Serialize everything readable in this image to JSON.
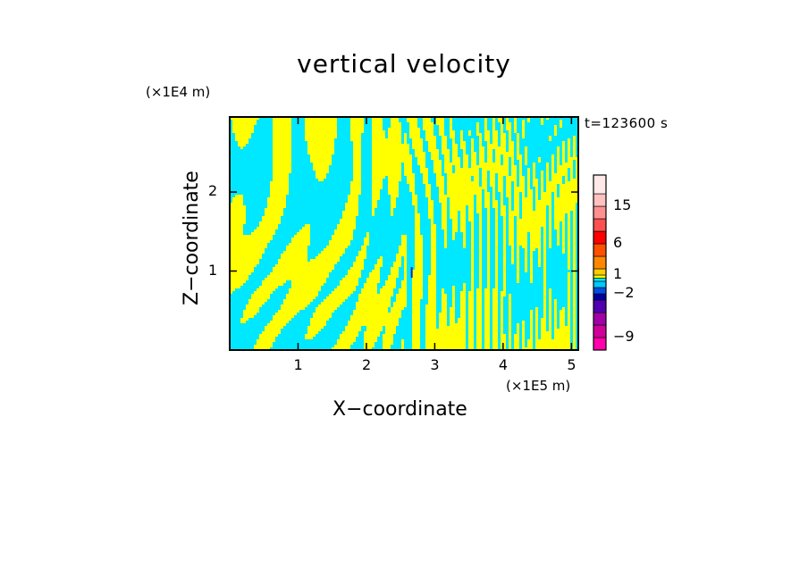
{
  "chart_data": {
    "type": "heatmap",
    "title": "vertical velocity",
    "xlabel": "X−coordinate",
    "ylabel": "Z−coordinate",
    "x_unit": "(×1E5 m)",
    "y_unit": "(×1E4 m)",
    "annotation": "t=123600 s",
    "xlim": [
      0,
      5.1
    ],
    "ylim": [
      0,
      2.95
    ],
    "x_ticks": [
      "1",
      "2",
      "3",
      "4",
      "5"
    ],
    "x_tick_values": [
      1,
      2,
      3,
      4,
      5
    ],
    "y_ticks": [
      "1",
      "2"
    ],
    "y_tick_values": [
      1,
      2
    ],
    "field_colors": {
      "negative": "#00e8ff",
      "positive": "#ffff00",
      "strong": "#2020c0"
    },
    "colorbar": {
      "levels": [
        -11,
        -9,
        -7,
        -5,
        -3,
        -2,
        -1,
        0,
        0.5,
        1,
        2,
        4,
        6,
        9,
        12,
        15,
        18,
        22
      ],
      "colors": [
        "#ff00aa",
        "#d0009a",
        "#a000a8",
        "#5000b0",
        "#0000a0",
        "#0050e0",
        "#00c8ff",
        "#00e8ff",
        "#ffff00",
        "#ffcc00",
        "#ff8800",
        "#ff5000",
        "#ff0000",
        "#ff5050",
        "#ff9090",
        "#ffc0c0",
        "#ffe8e8"
      ],
      "tick_labels": [
        "15",
        "6",
        "1",
        "−2",
        "−9"
      ],
      "tick_values": [
        15,
        6,
        1,
        -2,
        -9
      ]
    }
  }
}
